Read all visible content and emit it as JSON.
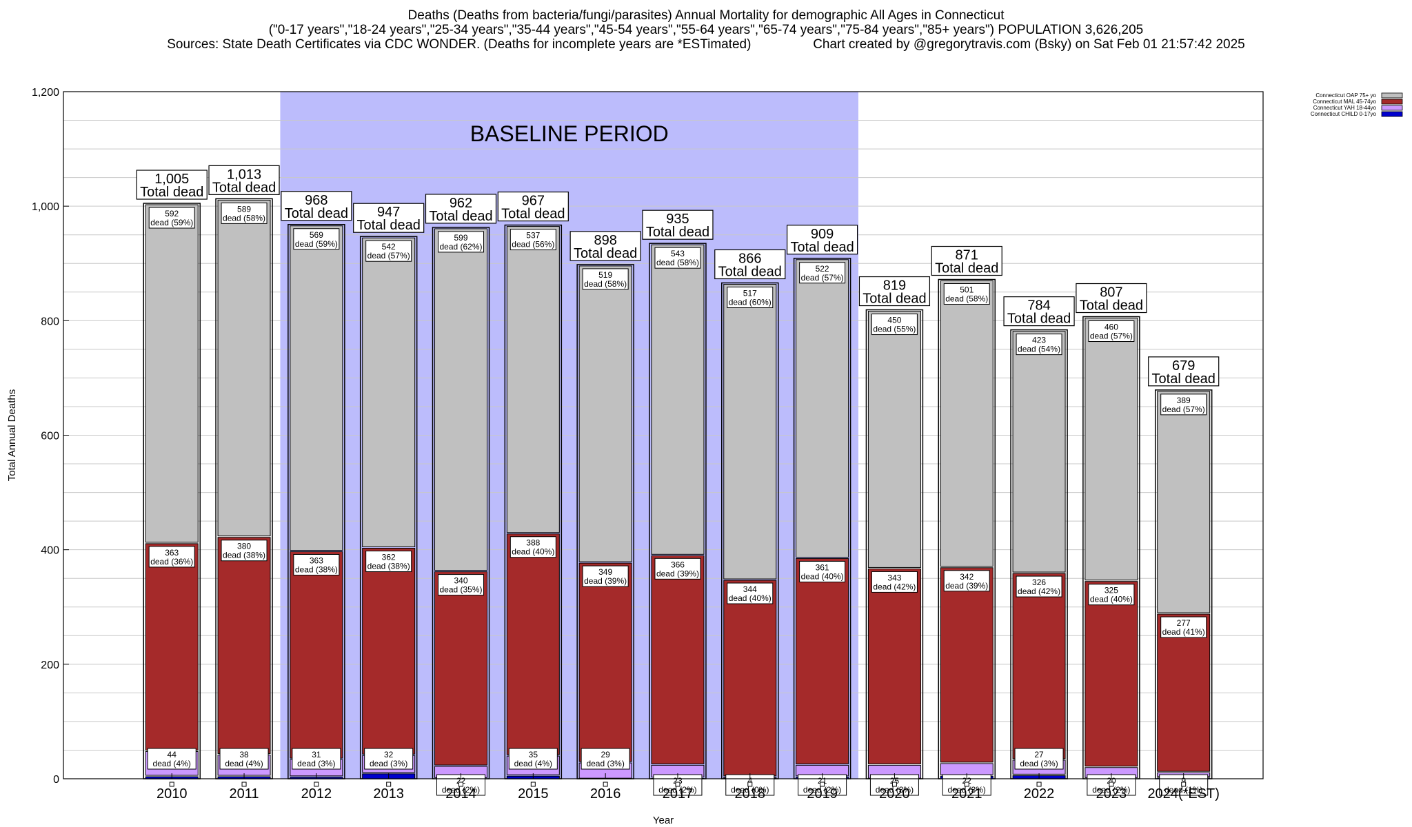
{
  "title_lines": [
    "Deaths (Deaths from bacteria/fungi/parasites) Annual Mortality for demographic All Ages in Connecticut",
    "(\"0-17 years\",\"18-24 years\",\"25-34 years\",\"35-44 years\",\"45-54 years\",\"55-64 years\",\"65-74 years\",\"75-84 years\",\"85+ years\") POPULATION 3,626,205",
    "Sources: State Death Certificates via CDC WONDER. (Deaths for incomplete years are *ESTimated)                 Chart created by @gregorytravis.com (Bsky) on Sat Feb 01 21:57:42 2025"
  ],
  "colors": {
    "oap": "#c0c0c0",
    "mal": "#a52a2a",
    "yah": "#cc99ff",
    "child": "#0000cc",
    "baseline": "#bcbcfc",
    "grid": "#c8c8c8"
  },
  "chart_data": {
    "type": "bar",
    "stacked": true,
    "xlabel": "Year",
    "ylabel": "Total Annual Deaths",
    "ylim": [
      0,
      1200
    ],
    "yticks": [
      0,
      200,
      400,
      600,
      800,
      1000,
      1200
    ],
    "ytick_labels": [
      "0",
      "200",
      "400",
      "600",
      "800",
      "1,000",
      "1,200"
    ],
    "grid": true,
    "legend_position": "top-right",
    "baseline": {
      "label": "BASELINE PERIOD",
      "from": "2012",
      "to": "2019"
    },
    "categories": [
      "2010",
      "2011",
      "2012",
      "2013",
      "2014",
      "2015",
      "2016",
      "2017",
      "2018",
      "2019",
      "2020",
      "2021",
      "2022",
      "2023",
      "2024(*EST)"
    ],
    "totals": [
      1005,
      1013,
      968,
      947,
      962,
      967,
      898,
      935,
      866,
      909,
      819,
      871,
      784,
      807,
      679
    ],
    "total_labels": [
      "1,005",
      "1,013",
      "968",
      "947",
      "962",
      "967",
      "898",
      "935",
      "866",
      "909",
      "819",
      "871",
      "784",
      "807",
      "679"
    ],
    "total_suffix": "Total dead",
    "series": [
      {
        "name": "Connecticut CHILD 0-17yo",
        "key": "child",
        "values": [
          6,
          6,
          5,
          11,
          2,
          7,
          1,
          3,
          1,
          5,
          1,
          7,
          8,
          2,
          4
        ]
      },
      {
        "name": "Connecticut YAH 18-44yo",
        "key": "yah",
        "values": [
          44,
          38,
          31,
          32,
          22,
          35,
          29,
          23,
          4,
          21,
          25,
          22,
          27,
          20,
          9
        ],
        "labels": [
          "dead (4%)",
          "dead (4%)",
          "dead (3%)",
          "dead (3%)",
          "dead (2%)",
          "dead (4%)",
          "dead (3%)",
          "dead (2%)",
          "dead (0%)",
          "dead (2%)",
          "dead (3%)",
          "dead (3%)",
          "dead (3%)",
          "dead (2%)",
          "dead (1%)"
        ]
      },
      {
        "name": "Connecticut MAL 45-74yo",
        "key": "mal",
        "values": [
          363,
          380,
          363,
          362,
          340,
          388,
          349,
          366,
          344,
          361,
          343,
          342,
          326,
          325,
          277
        ],
        "labels": [
          "dead (36%)",
          "dead (38%)",
          "dead (38%)",
          "dead (38%)",
          "dead (35%)",
          "dead (40%)",
          "dead (39%)",
          "dead (39%)",
          "dead (40%)",
          "dead (40%)",
          "dead (42%)",
          "dead (39%)",
          "dead (42%)",
          "dead (40%)",
          "dead (41%)"
        ]
      },
      {
        "name": "Connecticut OAP 75+ yo",
        "key": "oap",
        "values": [
          592,
          589,
          569,
          542,
          599,
          537,
          519,
          543,
          517,
          522,
          450,
          501,
          423,
          460,
          389
        ],
        "labels": [
          "dead (59%)",
          "dead (58%)",
          "dead (59%)",
          "dead (57%)",
          "dead (62%)",
          "dead (56%)",
          "dead (58%)",
          "dead (58%)",
          "dead (60%)",
          "dead (57%)",
          "dead (55%)",
          "dead (58%)",
          "dead (54%)",
          "dead (57%)",
          "dead (57%)"
        ]
      }
    ],
    "legend": [
      {
        "label": "Connecticut OAP 75+ yo",
        "key": "oap"
      },
      {
        "label": "Connecticut MAL 45-74yo",
        "key": "mal"
      },
      {
        "label": "Connecticut YAH 18-44yo",
        "key": "yah"
      },
      {
        "label": "Connecticut CHILD 0-17yo",
        "key": "child"
      }
    ]
  }
}
